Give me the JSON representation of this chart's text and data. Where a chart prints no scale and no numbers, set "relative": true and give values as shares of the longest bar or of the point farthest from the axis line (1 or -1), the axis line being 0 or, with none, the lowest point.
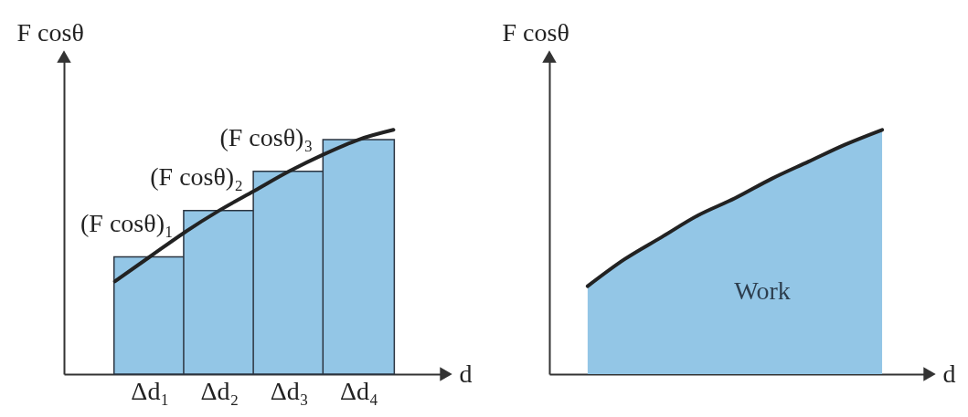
{
  "chart_data": [
    {
      "type": "bar",
      "relative": true,
      "xlabel": "d",
      "ylabel": "F cosθ",
      "categories": [
        null,
        "Δd₁",
        null,
        "Δd₂",
        null,
        "Δd₃",
        null,
        "Δd₄",
        null
      ],
      "series": [
        {
          "color": "#93c6e6",
          "values": [
            null,
            0.48,
            null,
            0.67,
            null,
            0.83,
            null,
            0.96,
            null
          ]
        },
        {
          "type": "line",
          "color": "#222222",
          "values": [
            0.38,
            0.48,
            0.58,
            0.67,
            0.75,
            0.83,
            0.9,
            0.96,
            1
          ]
        }
      ],
      "annotations": [
        {
          "text": "(F cosθ)₁",
          "x": "Δd₁",
          "y": 0.48
        },
        {
          "text": "(F cosθ)₂",
          "x": "Δd₂",
          "y": 0.67
        },
        {
          "text": "(F cosθ)₃",
          "x": "Δd₃",
          "y": 0.83
        }
      ]
    },
    {
      "type": "area",
      "relative": true,
      "xlabel": "d",
      "ylabel": "F cosθ",
      "categories": [
        null,
        null,
        null,
        null,
        null,
        null,
        null,
        null,
        null
      ],
      "series": [
        {
          "color": "#93c6e6",
          "values": [
            0.36,
            0.47,
            0.56,
            0.65,
            0.72,
            0.8,
            0.87,
            0.94,
            1
          ]
        }
      ],
      "annotations": [
        "Work"
      ]
    }
  ]
}
